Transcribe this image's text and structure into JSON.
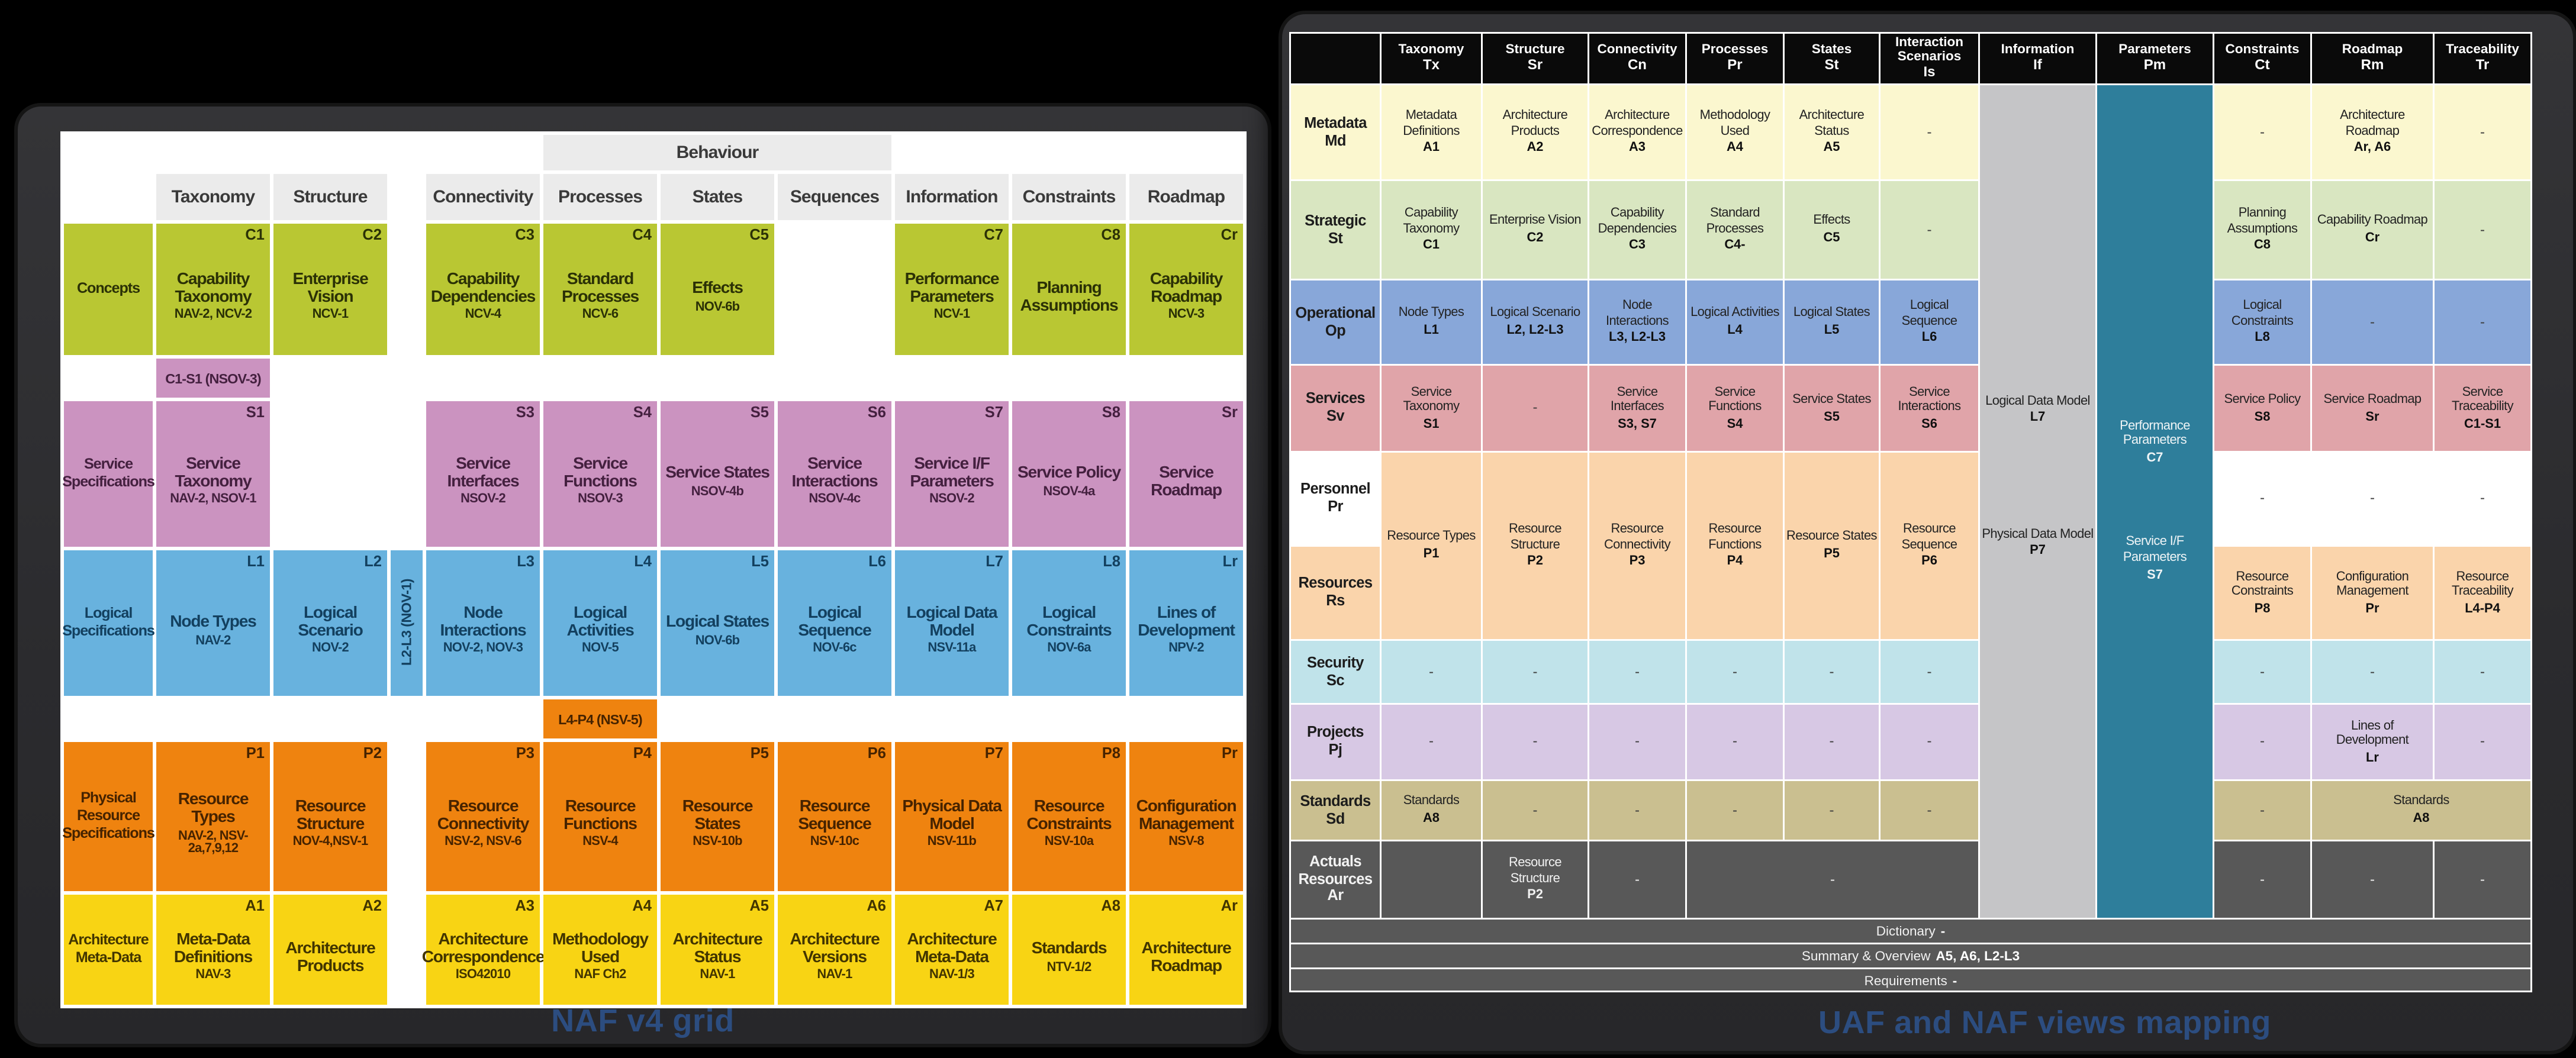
{
  "captions": {
    "left": "NAF v4 grid",
    "right": "UAF and NAF views mapping"
  },
  "dash": "-",
  "colors": {
    "concepts": "#b9c733",
    "service_specifications": "#cb93c0",
    "logical_specifications": "#68b2de",
    "physical_specifications": "#ef830f",
    "architecture_metadata": "#f8d414",
    "uaf_header_bg": "#0a0a0a",
    "information_column": "#c5c5c7",
    "parameters_column": "#2e7e9b",
    "actuals_row": "#585858",
    "caption_text": "#2c4d80"
  },
  "naf_grid": {
    "behaviour_label": "Behaviour",
    "column_headers": [
      "Taxonomy",
      "Structure",
      "Connectivity",
      "Processes",
      "States",
      "Sequences",
      "Information",
      "Constraints",
      "Roadmap"
    ],
    "strip": {
      "text": "L2-L3 (NOV-1)",
      "row": "logical"
    },
    "bridges": [
      {
        "text": "C1-S1 (NSOV-3)",
        "row": "services",
        "col": 0
      },
      {
        "text": "L4-P4 (NSV-5)",
        "row": "physical",
        "col": 3
      }
    ],
    "rows": [
      {
        "key": "concepts",
        "label": "Concepts",
        "cells": [
          {
            "col": 0,
            "code": "C1",
            "title": "Capability Taxonomy",
            "sub": "NAV-2, NCV-2"
          },
          {
            "col": 1,
            "code": "C2",
            "title": "Enterprise Vision",
            "sub": "NCV-1"
          },
          {
            "col": 2,
            "code": "C3",
            "title": "Capability Dependencies",
            "sub": "NCV-4"
          },
          {
            "col": 3,
            "code": "C4",
            "title": "Standard Processes",
            "sub": "NCV-6"
          },
          {
            "col": 4,
            "code": "C5",
            "title": "Effects",
            "sub": "NOV-6b"
          },
          {
            "col": 6,
            "code": "C7",
            "title": "Performance Parameters",
            "sub": "NCV-1"
          },
          {
            "col": 7,
            "code": "C8",
            "title": "Planning Assumptions",
            "sub": ""
          },
          {
            "col": 8,
            "code": "Cr",
            "title": "Capability Roadmap",
            "sub": "NCV-3"
          }
        ]
      },
      {
        "key": "services",
        "label": "Service Specifications",
        "cells": [
          {
            "col": 0,
            "code": "S1",
            "title": "Service Taxonomy",
            "sub": "NAV-2, NSOV-1"
          },
          {
            "col": 2,
            "code": "S3",
            "title": "Service Interfaces",
            "sub": "NSOV-2"
          },
          {
            "col": 3,
            "code": "S4",
            "title": "Service Functions",
            "sub": "NSOV-3"
          },
          {
            "col": 4,
            "code": "S5",
            "title": "Service States",
            "sub": "NSOV-4b"
          },
          {
            "col": 5,
            "code": "S6",
            "title": "Service Interactions",
            "sub": "NSOV-4c"
          },
          {
            "col": 6,
            "code": "S7",
            "title": "Service I/F Parameters",
            "sub": "NSOV-2"
          },
          {
            "col": 7,
            "code": "S8",
            "title": "Service Policy",
            "sub": "NSOV-4a"
          },
          {
            "col": 8,
            "code": "Sr",
            "title": "Service Roadmap",
            "sub": ""
          }
        ]
      },
      {
        "key": "logical",
        "label": "Logical Specifications",
        "cells": [
          {
            "col": 0,
            "code": "L1",
            "title": "Node Types",
            "sub": "NAV-2"
          },
          {
            "col": 1,
            "code": "L2",
            "title": "Logical Scenario",
            "sub": "NOV-2"
          },
          {
            "col": 2,
            "code": "L3",
            "title": "Node Interactions",
            "sub": "NOV-2, NOV-3"
          },
          {
            "col": 3,
            "code": "L4",
            "title": "Logical Activities",
            "sub": "NOV-5"
          },
          {
            "col": 4,
            "code": "L5",
            "title": "Logical States",
            "sub": "NOV-6b"
          },
          {
            "col": 5,
            "code": "L6",
            "title": "Logical Sequence",
            "sub": "NOV-6c"
          },
          {
            "col": 6,
            "code": "L7",
            "title": "Logical Data Model",
            "sub": "NSV-11a"
          },
          {
            "col": 7,
            "code": "L8",
            "title": "Logical Constraints",
            "sub": "NOV-6a"
          },
          {
            "col": 8,
            "code": "Lr",
            "title": "Lines of Development",
            "sub": "NPV-2"
          }
        ]
      },
      {
        "key": "physical",
        "label": "Physical Resource Specifications",
        "cells": [
          {
            "col": 0,
            "code": "P1",
            "title": "Resource Types",
            "sub": "NAV-2, NSV-2a,7,9,12"
          },
          {
            "col": 1,
            "code": "P2",
            "title": "Resource Structure",
            "sub": "NOV-4,NSV-1"
          },
          {
            "col": 2,
            "code": "P3",
            "title": "Resource Connectivity",
            "sub": "NSV-2, NSV-6"
          },
          {
            "col": 3,
            "code": "P4",
            "title": "Resource Functions",
            "sub": "NSV-4"
          },
          {
            "col": 4,
            "code": "P5",
            "title": "Resource States",
            "sub": "NSV-10b"
          },
          {
            "col": 5,
            "code": "P6",
            "title": "Resource Sequence",
            "sub": "NSV-10c"
          },
          {
            "col": 6,
            "code": "P7",
            "title": "Physical Data Model",
            "sub": "NSV-11b"
          },
          {
            "col": 7,
            "code": "P8",
            "title": "Resource Constraints",
            "sub": "NSV-10a"
          },
          {
            "col": 8,
            "code": "Pr",
            "title": "Configuration Management",
            "sub": "NSV-8"
          }
        ]
      },
      {
        "key": "meta",
        "label": "Architecture Meta-Data",
        "cells": [
          {
            "col": 0,
            "code": "A1",
            "title": "Meta-Data Definitions",
            "sub": "NAV-3"
          },
          {
            "col": 1,
            "code": "A2",
            "title": "Architecture Products",
            "sub": ""
          },
          {
            "col": 2,
            "code": "A3",
            "title": "Architecture Correspondence",
            "sub": "ISO42010"
          },
          {
            "col": 3,
            "code": "A4",
            "title": "Methodology Used",
            "sub": "NAF Ch2"
          },
          {
            "col": 4,
            "code": "A5",
            "title": "Architecture Status",
            "sub": "NAV-1"
          },
          {
            "col": 5,
            "code": "A6",
            "title": "Architecture Versions",
            "sub": "NAV-1"
          },
          {
            "col": 6,
            "code": "A7",
            "title": "Architecture Meta-Data",
            "sub": "NAV-1/3"
          },
          {
            "col": 7,
            "code": "A8",
            "title": "Standards",
            "sub": "NTV-1/2"
          },
          {
            "col": 8,
            "code": "Ar",
            "title": "Architecture Roadmap",
            "sub": ""
          }
        ]
      }
    ]
  },
  "uaf_table": {
    "columns": [
      {
        "name": "Taxonomy",
        "abbr": "Tx"
      },
      {
        "name": "Structure",
        "abbr": "Sr"
      },
      {
        "name": "Connectivity",
        "abbr": "Cn"
      },
      {
        "name": "Processes",
        "abbr": "Pr"
      },
      {
        "name": "States",
        "abbr": "St"
      },
      {
        "name": "Interaction Scenarios",
        "abbr": "Is"
      },
      {
        "name": "Information",
        "abbr": "If"
      },
      {
        "name": "Parameters",
        "abbr": "Pm"
      },
      {
        "name": "Constraints",
        "abbr": "Ct"
      },
      {
        "name": "Roadmap",
        "abbr": "Rm"
      },
      {
        "name": "Traceability",
        "abbr": "Tr"
      }
    ],
    "information_column": {
      "blocks": [
        {
          "title": "Logical Data Model",
          "code": "L7"
        },
        {
          "title": "Physical Data Model",
          "code": "P7"
        }
      ]
    },
    "parameters_column": {
      "blocks": [
        {
          "title": "Performance Parameters",
          "code": "C7"
        },
        {
          "title": "Service I/F Parameters",
          "code": "S7"
        }
      ]
    },
    "rows": [
      {
        "key": "metadata",
        "label": "Metadata",
        "abbr": "Md",
        "cells": [
          {
            "col": 1,
            "t": "Metadata Definitions",
            "c": "A1"
          },
          {
            "col": 2,
            "t": "Architecture Products",
            "c": "A2"
          },
          {
            "col": 3,
            "t": "Architecture Correspondence",
            "c": "A3"
          },
          {
            "col": 4,
            "t": "Methodology Used",
            "c": "A4"
          },
          {
            "col": 5,
            "t": "Architecture Status",
            "c": "A5"
          },
          {
            "col": 6,
            "d": 1
          },
          {
            "col": 9,
            "d": 1
          },
          {
            "col": 10,
            "t": "Architecture Roadmap",
            "c": "Ar, A6"
          },
          {
            "col": 11,
            "d": 1
          }
        ]
      },
      {
        "key": "strategic",
        "label": "Strategic",
        "abbr": "St",
        "cells": [
          {
            "col": 1,
            "t": "Capability Taxonomy",
            "c": "C1"
          },
          {
            "col": 2,
            "t": "Enterprise Vision",
            "c": "C2"
          },
          {
            "col": 3,
            "t": "Capability Dependencies",
            "c": "C3"
          },
          {
            "col": 4,
            "t": "Standard Processes",
            "c": "C4-"
          },
          {
            "col": 5,
            "t": "Effects",
            "c": "C5"
          },
          {
            "col": 6,
            "d": 1
          },
          {
            "col": 9,
            "t": "Planning Assumptions",
            "c": "C8"
          },
          {
            "col": 10,
            "t": "Capability Roadmap",
            "c": "Cr"
          },
          {
            "col": 11,
            "d": 1
          }
        ]
      },
      {
        "key": "operational",
        "label": "Operational",
        "abbr": "Op",
        "cells": [
          {
            "col": 1,
            "t": "Node Types",
            "c": "L1"
          },
          {
            "col": 2,
            "t": "Logical Scenario",
            "c": "L2, L2-L3"
          },
          {
            "col": 3,
            "t": "Node Interactions",
            "c": "L3, L2-L3"
          },
          {
            "col": 4,
            "t": "Logical Activities",
            "c": "L4"
          },
          {
            "col": 5,
            "t": "Logical States",
            "c": "L5"
          },
          {
            "col": 6,
            "t": "Logical Sequence",
            "c": "L6"
          },
          {
            "col": 9,
            "t": "Logical Constraints",
            "c": "L8"
          },
          {
            "col": 10,
            "d": 1
          },
          {
            "col": 11,
            "d": 1
          }
        ]
      },
      {
        "key": "services",
        "label": "Services",
        "abbr": "Sv",
        "cells": [
          {
            "col": 1,
            "t": "Service Taxonomy",
            "c": "S1"
          },
          {
            "col": 2,
            "d": 1
          },
          {
            "col": 3,
            "t": "Service Interfaces",
            "c": "S3, S7"
          },
          {
            "col": 4,
            "t": "Service Functions",
            "c": "S4"
          },
          {
            "col": 5,
            "t": "Service States",
            "c": "S5"
          },
          {
            "col": 6,
            "t": "Service Interactions",
            "c": "S6"
          },
          {
            "col": 9,
            "t": "Service Policy",
            "c": "S8"
          },
          {
            "col": 10,
            "t": "Service Roadmap",
            "c": "Sr"
          },
          {
            "col": 11,
            "t": "Service Traceability",
            "c": "C1-S1"
          }
        ]
      },
      {
        "key": "personnel",
        "label": "Personnel",
        "abbr": "Pr",
        "label_bg": "white",
        "cells": [
          {
            "col": 1,
            "t": "Resource Types",
            "c": "P1",
            "rs": 2,
            "bg": "resources"
          },
          {
            "col": 2,
            "t": "Resource Structure",
            "c": "P2",
            "rs": 2,
            "bg": "resources"
          },
          {
            "col": 3,
            "t": "Resource Connectivity",
            "c": "P3",
            "rs": 2,
            "bg": "resources"
          },
          {
            "col": 4,
            "t": "Resource Functions",
            "c": "P4",
            "rs": 2,
            "bg": "resources"
          },
          {
            "col": 5,
            "t": "Resource States",
            "c": "P5",
            "rs": 2,
            "bg": "resources"
          },
          {
            "col": 6,
            "t": "Resource Sequence",
            "c": "P6",
            "rs": 2,
            "bg": "resources"
          },
          {
            "col": 9,
            "d": 1,
            "bg": "white"
          },
          {
            "col": 10,
            "d": 1,
            "bg": "white"
          },
          {
            "col": 11,
            "d": 1,
            "bg": "white"
          }
        ]
      },
      {
        "key": "resources",
        "label": "Resources",
        "abbr": "Rs",
        "cells": [
          {
            "col": 9,
            "t": "Resource Constraints",
            "c": "P8"
          },
          {
            "col": 10,
            "t": "Configuration Management",
            "c": "Pr"
          },
          {
            "col": 11,
            "t": "Resource Traceability",
            "c": "L4-P4"
          }
        ]
      },
      {
        "key": "security",
        "label": "Security",
        "abbr": "Sc",
        "cells": [
          {
            "col": 1,
            "d": 1
          },
          {
            "col": 2,
            "d": 1
          },
          {
            "col": 3,
            "d": 1
          },
          {
            "col": 4,
            "d": 1
          },
          {
            "col": 5,
            "d": 1
          },
          {
            "col": 6,
            "d": 1
          },
          {
            "col": 9,
            "d": 1
          },
          {
            "col": 10,
            "d": 1
          },
          {
            "col": 11,
            "d": 1
          }
        ]
      },
      {
        "key": "projects",
        "label": "Projects",
        "abbr": "Pj",
        "cells": [
          {
            "col": 1,
            "d": 1
          },
          {
            "col": 2,
            "d": 1
          },
          {
            "col": 3,
            "d": 1
          },
          {
            "col": 4,
            "d": 1
          },
          {
            "col": 5,
            "d": 1
          },
          {
            "col": 6,
            "d": 1
          },
          {
            "col": 9,
            "d": 1
          },
          {
            "col": 10,
            "t": "Lines of Development",
            "c": "Lr"
          },
          {
            "col": 11,
            "d": 1
          }
        ]
      },
      {
        "key": "standards",
        "label": "Standards",
        "abbr": "Sd",
        "cells": [
          {
            "col": 1,
            "t": "Standards",
            "c": "A8"
          },
          {
            "col": 2,
            "d": 1
          },
          {
            "col": 3,
            "d": 1
          },
          {
            "col": 4,
            "d": 1
          },
          {
            "col": 5,
            "d": 1
          },
          {
            "col": 6,
            "d": 1
          },
          {
            "col": 9,
            "d": 1
          },
          {
            "col": 10,
            "t": "Standards",
            "c": "A8",
            "cs": 2
          }
        ]
      },
      {
        "key": "actuals",
        "label": "Actuals Resources",
        "abbr": "Ar",
        "label_bg": "actuals",
        "cells": [
          {
            "col": 1,
            "e": 1
          },
          {
            "col": 2,
            "t": "Resource Structure",
            "c": "P2"
          },
          {
            "col": 3,
            "d": 1
          },
          {
            "col": 4,
            "d": 1,
            "cs": 3
          },
          {
            "col": 9,
            "d": 1
          },
          {
            "col": 10,
            "d": 1
          },
          {
            "col": 11,
            "d": 1
          }
        ]
      }
    ],
    "bands": [
      {
        "text": "Dictionary",
        "code": "-"
      },
      {
        "text": "Summary & Overview",
        "code": "A5, A6, L2-L3"
      },
      {
        "text": "Requirements",
        "code": "-"
      }
    ]
  }
}
